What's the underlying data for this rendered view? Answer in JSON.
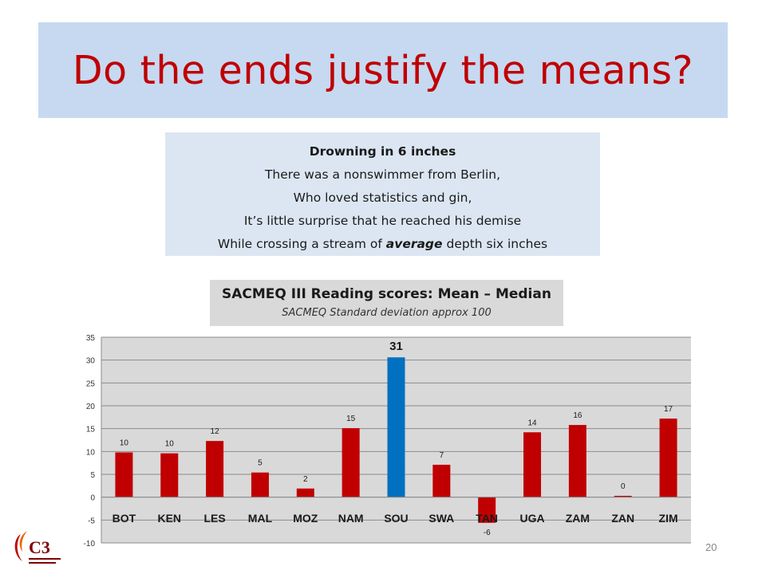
{
  "slide": {
    "title": "Do the ends justify the means?",
    "page_number": "20"
  },
  "poem": {
    "title": "Drowning in 6 inches",
    "line1": "There was a nonswimmer from Berlin,",
    "line2": "Who loved statistics and gin,",
    "line3_before": "It’s little surprise that he reached his demise",
    "line4_before": "While crossing a stream of ",
    "line4_em": "average",
    "line4_after": " depth six inches"
  },
  "chart_header": {
    "title": "SACMEQ III Reading scores: Mean – Median",
    "subtitle": "SACMEQ Standard deviation approx 100"
  },
  "logo": {
    "text": "C3"
  },
  "colors": {
    "bar_default": "#c00000",
    "bar_highlight": "#0070c0",
    "title": "#c00000"
  },
  "chart_data": {
    "type": "bar",
    "categories": [
      "BOT",
      "KEN",
      "LES",
      "MAL",
      "MOZ",
      "NAM",
      "SOU",
      "SWA",
      "TAN",
      "UGA",
      "ZAM",
      "ZAN",
      "ZIM"
    ],
    "values": [
      9.8,
      9.6,
      12.3,
      5.4,
      1.9,
      15.1,
      30.6,
      7.1,
      -5.6,
      14.2,
      15.8,
      0.3,
      17.2
    ],
    "labels": [
      "10",
      "10",
      "12",
      "5",
      "2",
      "15",
      "31",
      "7",
      "-6",
      "14",
      "16",
      "0",
      "17"
    ],
    "highlight_category": "SOU",
    "ylim": [
      -10,
      35
    ],
    "yticks": [
      35,
      30,
      25,
      20,
      15,
      10,
      5,
      0,
      -5,
      -10
    ],
    "grid": true
  }
}
